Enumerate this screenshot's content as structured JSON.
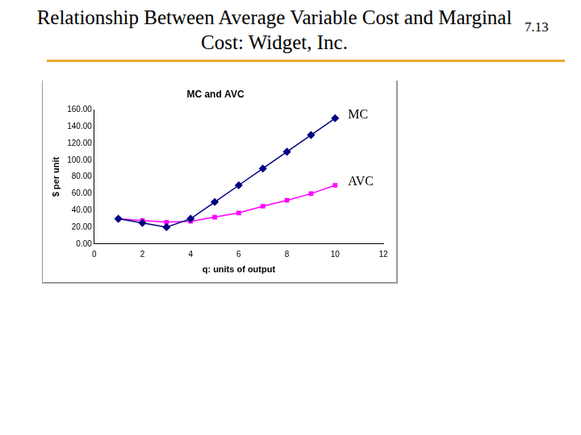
{
  "slide": {
    "title": "Relationship Between Average Variable Cost and Marginal Cost: Widget, Inc.",
    "number": "7.13"
  },
  "chart_data": {
    "type": "line",
    "title": "MC and AVC",
    "xlabel": "q: units of output",
    "ylabel": "$ per unit",
    "x": [
      1,
      2,
      3,
      4,
      5,
      6,
      7,
      8,
      9,
      10
    ],
    "series": [
      {
        "name": "MC",
        "color": "#000080",
        "marker": "diamond",
        "values": [
          30,
          25,
          20,
          30,
          50,
          70,
          90,
          110,
          130,
          150
        ]
      },
      {
        "name": "AVC",
        "color": "#ff00ff",
        "marker": "square",
        "values": [
          30,
          28,
          26,
          27,
          32,
          37,
          45,
          52,
          60,
          70
        ]
      }
    ],
    "xlim": [
      0,
      12
    ],
    "xticks": [
      0,
      2,
      4,
      6,
      8,
      10,
      12
    ],
    "ylim": [
      0,
      160
    ],
    "yticks": [
      {
        "value": 0,
        "label": "0.00"
      },
      {
        "value": 20,
        "label": "20.00"
      },
      {
        "value": 40,
        "label": "40.00"
      },
      {
        "value": 60,
        "label": "60.00"
      },
      {
        "value": 80,
        "label": "80.00"
      },
      {
        "value": 100,
        "label": "100.00"
      },
      {
        "value": 120,
        "label": "120.00"
      },
      {
        "value": 140,
        "label": "140.00"
      },
      {
        "value": 160,
        "label": "160.00"
      }
    ],
    "grid": false
  }
}
